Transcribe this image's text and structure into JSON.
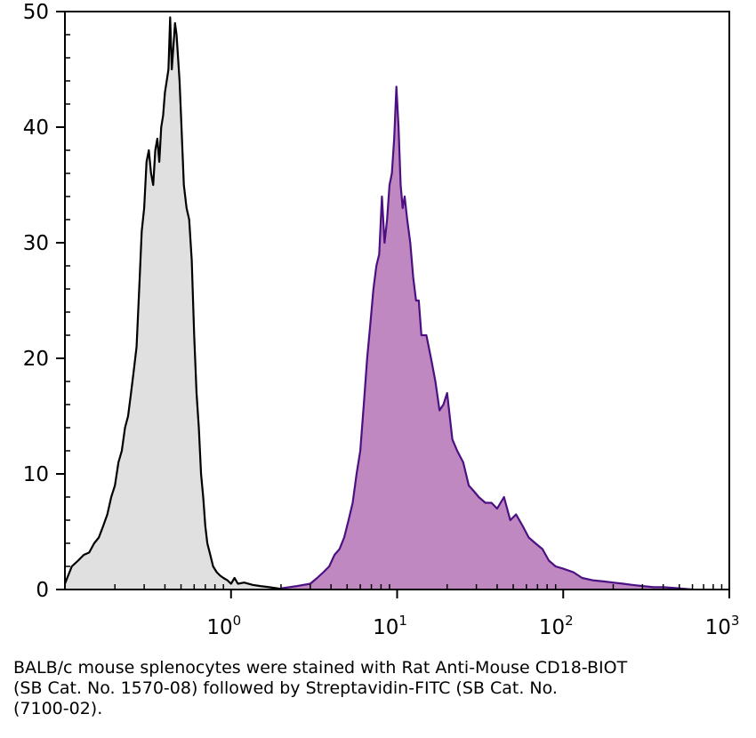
{
  "chart_data": {
    "type": "area",
    "title": "",
    "xlabel": "",
    "ylabel": "",
    "x_scale": "log",
    "xlim": [
      0.1,
      1000
    ],
    "ylim": [
      0,
      50
    ],
    "grid": false,
    "legend": "none",
    "x_ticks": [
      {
        "value": 1,
        "base": "10",
        "exp": "0"
      },
      {
        "value": 10,
        "base": "10",
        "exp": "1"
      },
      {
        "value": 100,
        "base": "10",
        "exp": "2"
      },
      {
        "value": 1000,
        "base": "10",
        "exp": "3"
      }
    ],
    "y_ticks": [
      {
        "value": 0,
        "label": "0"
      },
      {
        "value": 10,
        "label": "10"
      },
      {
        "value": 20,
        "label": "20"
      },
      {
        "value": 30,
        "label": "30"
      },
      {
        "value": 40,
        "label": "40"
      },
      {
        "value": 50,
        "label": "50"
      }
    ],
    "series": [
      {
        "fill": "#e0e0e0",
        "stroke": "#000000",
        "x": [
          0.1,
          0.11,
          0.12,
          0.13,
          0.14,
          0.15,
          0.16,
          0.17,
          0.18,
          0.19,
          0.2,
          0.21,
          0.22,
          0.23,
          0.24,
          0.25,
          0.26,
          0.27,
          0.28,
          0.29,
          0.3,
          0.31,
          0.32,
          0.33,
          0.34,
          0.35,
          0.36,
          0.37,
          0.38,
          0.39,
          0.4,
          0.41,
          0.42,
          0.43,
          0.44,
          0.45,
          0.46,
          0.47,
          0.48,
          0.49,
          0.5,
          0.52,
          0.54,
          0.56,
          0.58,
          0.6,
          0.62,
          0.64,
          0.66,
          0.68,
          0.7,
          0.72,
          0.75,
          0.78,
          0.82,
          0.86,
          0.9,
          0.95,
          1.0,
          1.05,
          1.1,
          1.2,
          1.35,
          1.5,
          1.7,
          1.9,
          2.1
        ],
        "y": [
          0.5,
          2.0,
          2.5,
          3.0,
          3.2,
          4.0,
          4.5,
          5.5,
          6.5,
          8.0,
          9.0,
          11.0,
          12.0,
          14.0,
          15.0,
          17.0,
          19.0,
          21.0,
          26.0,
          31.0,
          33.0,
          37.0,
          38.0,
          36.0,
          35.0,
          38.0,
          39.0,
          37.0,
          40.0,
          41.0,
          43.0,
          44.0,
          45.0,
          49.5,
          45.0,
          47.0,
          49.0,
          48.0,
          46.0,
          44.0,
          41.0,
          35.0,
          33.0,
          32.0,
          28.5,
          22.0,
          17.0,
          14.0,
          10.0,
          8.0,
          5.5,
          4.0,
          3.0,
          2.0,
          1.5,
          1.2,
          1.0,
          0.8,
          0.5,
          1.0,
          0.5,
          0.6,
          0.4,
          0.3,
          0.2,
          0.1,
          0.0
        ]
      },
      {
        "fill": "#c088c0",
        "stroke": "#4b1082",
        "x": [
          2.0,
          2.5,
          3.0,
          3.3,
          3.6,
          3.9,
          4.2,
          4.5,
          4.8,
          5.1,
          5.4,
          5.7,
          6.0,
          6.3,
          6.6,
          6.9,
          7.2,
          7.5,
          7.8,
          8.1,
          8.4,
          8.7,
          9.0,
          9.3,
          9.6,
          9.9,
          10.2,
          10.5,
          10.8,
          11.1,
          11.5,
          12.0,
          12.5,
          13.0,
          13.5,
          14.0,
          15.0,
          16.0,
          17.0,
          18.0,
          19.0,
          20.0,
          21.5,
          23.0,
          25.0,
          27.0,
          29.0,
          31.0,
          34.0,
          37.0,
          40.0,
          44.0,
          48.0,
          52.0,
          57.0,
          62.0,
          68.0,
          75.0,
          82.0,
          90.0,
          100.0,
          115.0,
          130.0,
          150.0,
          175.0,
          200.0,
          230.0,
          260.0,
          300.0,
          350.0,
          400.0,
          500.0,
          600.0
        ],
        "y": [
          0.1,
          0.3,
          0.5,
          1.0,
          1.5,
          2.0,
          3.0,
          3.5,
          4.5,
          6.0,
          7.5,
          10.0,
          12.0,
          16.0,
          20.0,
          23.0,
          26.0,
          28.0,
          29.0,
          34.0,
          30.0,
          32.0,
          35.0,
          36.0,
          39.0,
          43.5,
          40.0,
          35.0,
          33.0,
          34.0,
          32.0,
          30.0,
          27.0,
          25.0,
          25.0,
          22.0,
          22.0,
          20.0,
          18.0,
          15.5,
          16.0,
          17.0,
          13.0,
          12.0,
          11.0,
          9.0,
          8.5,
          8.0,
          7.5,
          7.5,
          7.0,
          8.0,
          6.0,
          6.5,
          5.5,
          4.5,
          4.0,
          3.5,
          2.5,
          2.0,
          1.8,
          1.5,
          1.0,
          0.8,
          0.7,
          0.6,
          0.5,
          0.4,
          0.3,
          0.2,
          0.2,
          0.1,
          0.0
        ]
      }
    ]
  },
  "caption": {
    "lines": [
      "BALB/c mouse splenocytes were stained with Rat Anti-Mouse CD18-BIOT",
      "(SB Cat. No. 1570-08) followed by Streptavidin-FITC (SB Cat. No.",
      "(7100-02)."
    ]
  }
}
